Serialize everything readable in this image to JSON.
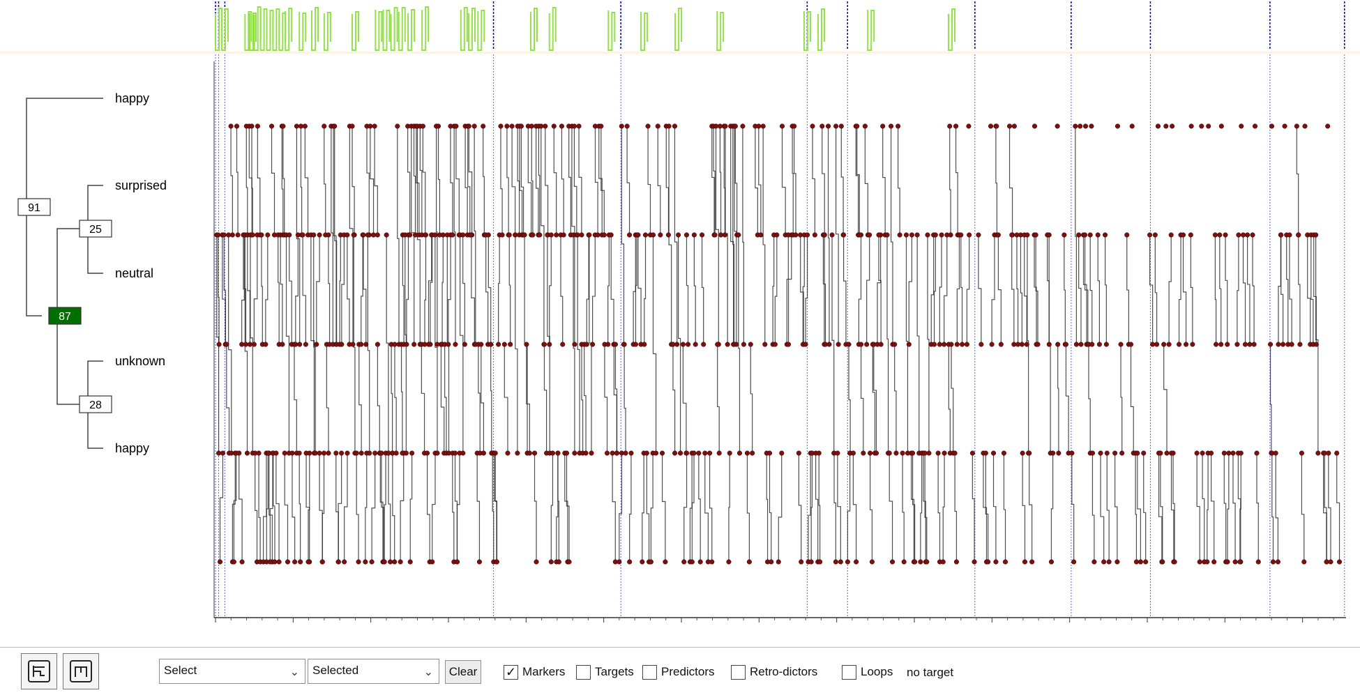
{
  "tree": {
    "leaves": [
      "happy",
      "surprised",
      "neutral",
      "unknown",
      "happy"
    ],
    "nodes": [
      {
        "label": "91",
        "selected": false
      },
      {
        "label": "25",
        "selected": false
      },
      {
        "label": "87",
        "selected": true
      },
      {
        "label": "28",
        "selected": false
      }
    ],
    "selected_color": "#006e00"
  },
  "chart_data": {
    "type": "event-raster",
    "x_ticks": [
      "0",
      "5.000",
      "10.000",
      "15.000",
      "20.000",
      "25.000",
      "30.000",
      "35.000",
      "40.000",
      "45.000",
      "50.000",
      "55.000",
      "60.000",
      "65.000",
      "70.000"
    ],
    "xlim": [
      0,
      72800
    ],
    "rows": [
      "happy",
      "surprised",
      "neutral",
      "unknown",
      "happy"
    ],
    "markers_at": [
      0,
      200,
      600,
      17900,
      26100,
      38100,
      40700,
      48900,
      55100,
      60200,
      67900,
      72700
    ],
    "colors": {
      "transition": "#222222",
      "event": "#7a1010",
      "marker": "#1a1aff",
      "top_track": "#94e04a"
    }
  },
  "bottom": {
    "select_label": "Select",
    "selected_label": "Selected",
    "clear_label": "Clear",
    "checkboxes": [
      {
        "label": "Markers",
        "checked": true
      },
      {
        "label": "Targets",
        "checked": false
      },
      {
        "label": "Predictors",
        "checked": false
      },
      {
        "label": "Retro-dictors",
        "checked": false
      },
      {
        "label": "Loops",
        "checked": false
      }
    ],
    "status": "no target"
  }
}
